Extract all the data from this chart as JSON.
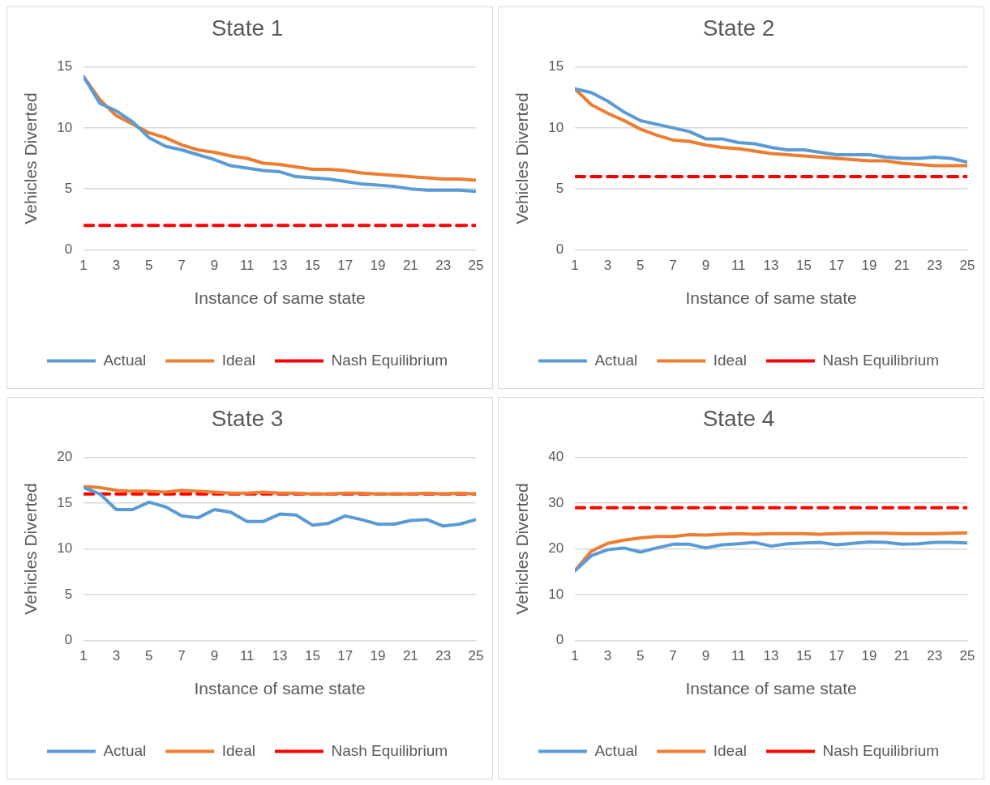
{
  "chart_data": [
    {
      "type": "line",
      "title": "State 1",
      "xlabel": "Instance of same state",
      "ylabel": "Vehicles Diverted",
      "x": [
        1,
        2,
        3,
        4,
        5,
        6,
        7,
        8,
        9,
        10,
        11,
        12,
        13,
        14,
        15,
        16,
        17,
        18,
        19,
        20,
        21,
        22,
        23,
        24,
        25
      ],
      "xlim": [
        1,
        25
      ],
      "xticks": [
        1,
        3,
        5,
        7,
        9,
        11,
        13,
        15,
        17,
        19,
        21,
        23,
        25
      ],
      "ylim": [
        0,
        15
      ],
      "yticks": [
        0,
        5,
        10,
        15
      ],
      "grid": "y",
      "legend": "bottom",
      "marker": "none",
      "series": [
        {
          "name": "Actual",
          "color": "#5b9bd5",
          "values": [
            14.2,
            12,
            11.4,
            10.5,
            9.2,
            8.5,
            8.2,
            7.8,
            7.4,
            6.9,
            6.7,
            6.5,
            6.4,
            6.0,
            5.9,
            5.8,
            5.6,
            5.4,
            5.3,
            5.2,
            5.0,
            4.9,
            4.9,
            4.9,
            4.8
          ]
        },
        {
          "name": "Ideal",
          "color": "#ed7d31",
          "values": [
            14.2,
            12.3,
            11,
            10.3,
            9.6,
            9.2,
            8.6,
            8.2,
            8.0,
            7.7,
            7.5,
            7.1,
            7.0,
            6.8,
            6.6,
            6.6,
            6.5,
            6.3,
            6.2,
            6.1,
            6.0,
            5.9,
            5.8,
            5.8,
            5.7
          ]
        },
        {
          "name": "Nash Equilibrium",
          "color": "#ff0000",
          "line_style": "dashed",
          "values": [
            2,
            2,
            2,
            2,
            2,
            2,
            2,
            2,
            2,
            2,
            2,
            2,
            2,
            2,
            2,
            2,
            2,
            2,
            2,
            2,
            2,
            2,
            2,
            2,
            2
          ]
        }
      ]
    },
    {
      "type": "line",
      "title": "State 2",
      "xlabel": "Instance of same state",
      "ylabel": "Vehicles Diverted",
      "x": [
        1,
        2,
        3,
        4,
        5,
        6,
        7,
        8,
        9,
        10,
        11,
        12,
        13,
        14,
        15,
        16,
        17,
        18,
        19,
        20,
        21,
        22,
        23,
        24,
        25
      ],
      "xlim": [
        1,
        25
      ],
      "xticks": [
        1,
        3,
        5,
        7,
        9,
        11,
        13,
        15,
        17,
        19,
        21,
        23,
        25
      ],
      "ylim": [
        0,
        15
      ],
      "yticks": [
        0,
        5,
        10,
        15
      ],
      "grid": "y",
      "legend": "bottom",
      "marker": "none",
      "series": [
        {
          "name": "Actual",
          "color": "#5b9bd5",
          "values": [
            13.2,
            12.9,
            12.2,
            11.3,
            10.6,
            10.3,
            10.0,
            9.7,
            9.1,
            9.1,
            8.8,
            8.7,
            8.4,
            8.2,
            8.2,
            8.0,
            7.8,
            7.8,
            7.8,
            7.6,
            7.5,
            7.5,
            7.6,
            7.5,
            7.2
          ]
        },
        {
          "name": "Ideal",
          "color": "#ed7d31",
          "values": [
            13.2,
            11.9,
            11.2,
            10.6,
            9.9,
            9.4,
            9.0,
            8.9,
            8.6,
            8.4,
            8.3,
            8.1,
            7.9,
            7.8,
            7.7,
            7.6,
            7.5,
            7.4,
            7.3,
            7.3,
            7.1,
            7.0,
            6.9,
            6.9,
            6.9
          ]
        },
        {
          "name": "Nash Equilibrium",
          "color": "#ff0000",
          "line_style": "dashed",
          "values": [
            6,
            6,
            6,
            6,
            6,
            6,
            6,
            6,
            6,
            6,
            6,
            6,
            6,
            6,
            6,
            6,
            6,
            6,
            6,
            6,
            6,
            6,
            6,
            6,
            6
          ]
        }
      ]
    },
    {
      "type": "line",
      "title": "State 3",
      "xlabel": "Instance of same state",
      "ylabel": "Vehicles Diverted",
      "x": [
        1,
        2,
        3,
        4,
        5,
        6,
        7,
        8,
        9,
        10,
        11,
        12,
        13,
        14,
        15,
        16,
        17,
        18,
        19,
        20,
        21,
        22,
        23,
        24,
        25
      ],
      "xlim": [
        1,
        25
      ],
      "xticks": [
        1,
        3,
        5,
        7,
        9,
        11,
        13,
        15,
        17,
        19,
        21,
        23,
        25
      ],
      "ylim": [
        0,
        20
      ],
      "yticks": [
        0,
        5,
        10,
        15,
        20
      ],
      "grid": "y",
      "legend": "bottom",
      "marker": "none",
      "series": [
        {
          "name": "Actual",
          "color": "#5b9bd5",
          "values": [
            16.7,
            16.0,
            14.3,
            14.3,
            15.1,
            14.6,
            13.6,
            13.4,
            14.3,
            14.0,
            13.0,
            13.0,
            13.8,
            13.7,
            12.6,
            12.8,
            13.6,
            13.2,
            12.7,
            12.7,
            13.1,
            13.2,
            12.5,
            12.7,
            13.2
          ]
        },
        {
          "name": "Ideal",
          "color": "#ed7d31",
          "values": [
            16.8,
            16.7,
            16.4,
            16.3,
            16.3,
            16.2,
            16.4,
            16.3,
            16.2,
            16.1,
            16.1,
            16.2,
            16.1,
            16.1,
            16.0,
            16.0,
            16.1,
            16.1,
            16.0,
            16.0,
            16.0,
            16.1,
            16.0,
            16.1,
            16.0
          ]
        },
        {
          "name": "Nash Equilibrium",
          "color": "#ff0000",
          "line_style": "dashed",
          "values": [
            16,
            16,
            16,
            16,
            16,
            16,
            16,
            16,
            16,
            16,
            16,
            16,
            16,
            16,
            16,
            16,
            16,
            16,
            16,
            16,
            16,
            16,
            16,
            16,
            16
          ]
        }
      ]
    },
    {
      "type": "line",
      "title": "State 4",
      "xlabel": "Instance of same state",
      "ylabel": "Vehicles Diverted",
      "x": [
        1,
        2,
        3,
        4,
        5,
        6,
        7,
        8,
        9,
        10,
        11,
        12,
        13,
        14,
        15,
        16,
        17,
        18,
        19,
        20,
        21,
        22,
        23,
        24,
        25
      ],
      "xlim": [
        1,
        25
      ],
      "xticks": [
        1,
        3,
        5,
        7,
        9,
        11,
        13,
        15,
        17,
        19,
        21,
        23,
        25
      ],
      "ylim": [
        0,
        40
      ],
      "yticks": [
        0,
        10,
        20,
        30,
        40
      ],
      "grid": "y",
      "legend": "bottom",
      "marker": "none",
      "series": [
        {
          "name": "Actual",
          "color": "#5b9bd5",
          "values": [
            15.2,
            18.5,
            19.8,
            20.2,
            19.3,
            20.2,
            21.0,
            21.0,
            20.2,
            20.9,
            21.1,
            21.4,
            20.6,
            21.1,
            21.3,
            21.4,
            20.9,
            21.2,
            21.5,
            21.4,
            21.0,
            21.1,
            21.4,
            21.4,
            21.3
          ]
        },
        {
          "name": "Ideal",
          "color": "#ed7d31",
          "values": [
            15.2,
            19.5,
            21.2,
            21.9,
            22.4,
            22.7,
            22.7,
            23.1,
            23.0,
            23.2,
            23.3,
            23.2,
            23.3,
            23.3,
            23.3,
            23.2,
            23.3,
            23.4,
            23.4,
            23.4,
            23.3,
            23.3,
            23.3,
            23.4,
            23.5
          ]
        },
        {
          "name": "Nash Equilibrium",
          "color": "#ff0000",
          "line_style": "dashed",
          "values": [
            29,
            29,
            29,
            29,
            29,
            29,
            29,
            29,
            29,
            29,
            29,
            29,
            29,
            29,
            29,
            29,
            29,
            29,
            29,
            29,
            29,
            29,
            29,
            29,
            29
          ]
        }
      ]
    }
  ]
}
